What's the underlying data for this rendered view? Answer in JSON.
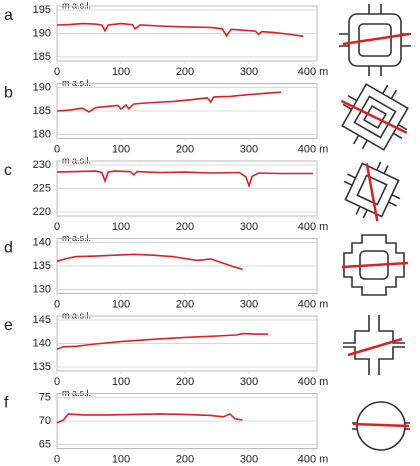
{
  "chart_data": [
    {
      "type": "line",
      "label": "a",
      "y_label": "m a.s.l.",
      "xlim": [
        0,
        400
      ],
      "ylim": [
        185,
        195
      ],
      "xticks": [
        0,
        100,
        200,
        300,
        {
          "value": 400,
          "label": "400 m"
        }
      ],
      "yticks": [
        185,
        190,
        195
      ],
      "x": [
        0,
        20,
        40,
        60,
        70,
        75,
        80,
        100,
        118,
        122,
        130,
        160,
        200,
        240,
        258,
        265,
        272,
        290,
        310,
        315,
        320,
        340,
        360,
        385
      ],
      "series": [
        {
          "color": "#e02020",
          "values": [
            191.8,
            191.9,
            192.1,
            192.0,
            191.8,
            190.6,
            191.8,
            192.1,
            191.9,
            191.0,
            191.8,
            191.6,
            191.4,
            191.3,
            191.0,
            189.5,
            190.9,
            190.7,
            190.5,
            189.8,
            190.4,
            190.2,
            189.9,
            189.4
          ]
        }
      ]
    },
    {
      "type": "line",
      "label": "b",
      "y_label": "m a.s.l.",
      "xlim": [
        0,
        400
      ],
      "ylim": [
        180,
        190
      ],
      "xticks": [
        0,
        100,
        200,
        300,
        {
          "value": 400,
          "label": "400 m"
        }
      ],
      "yticks": [
        180,
        185,
        190
      ],
      "x": [
        0,
        20,
        40,
        50,
        60,
        80,
        95,
        100,
        108,
        112,
        120,
        150,
        180,
        210,
        235,
        240,
        245,
        270,
        300,
        330,
        350
      ],
      "series": [
        {
          "color": "#e02020",
          "values": [
            185.0,
            185.2,
            185.6,
            184.8,
            185.7,
            186.0,
            186.2,
            185.4,
            186.3,
            185.5,
            186.5,
            186.8,
            187.0,
            187.4,
            187.8,
            186.9,
            188.0,
            188.1,
            188.5,
            188.8,
            189.0
          ]
        }
      ]
    },
    {
      "type": "line",
      "label": "c",
      "y_label": "m a.s.l.",
      "xlim": [
        0,
        400
      ],
      "ylim": [
        220,
        230
      ],
      "xticks": [
        0,
        100,
        200,
        300,
        {
          "value": 400,
          "label": "400 m"
        }
      ],
      "yticks": [
        220,
        225,
        230
      ],
      "x": [
        0,
        30,
        60,
        70,
        75,
        80,
        90,
        115,
        120,
        125,
        160,
        200,
        240,
        285,
        295,
        300,
        305,
        315,
        350,
        400
      ],
      "series": [
        {
          "color": "#e02020",
          "values": [
            228.5,
            228.6,
            228.7,
            228.4,
            226.6,
            228.5,
            228.7,
            228.6,
            227.9,
            228.6,
            228.4,
            228.5,
            228.3,
            228.4,
            227.5,
            225.6,
            227.6,
            228.3,
            228.2,
            228.2
          ]
        }
      ]
    },
    {
      "type": "line",
      "label": "d",
      "y_label": "m a.s.l.",
      "xlim": [
        0,
        400
      ],
      "ylim": [
        130,
        140
      ],
      "xticks": [
        0,
        100,
        200,
        300,
        {
          "value": 400,
          "label": "400 m"
        }
      ],
      "yticks": [
        130,
        135,
        140
      ],
      "x": [
        0,
        15,
        30,
        60,
        90,
        120,
        150,
        180,
        200,
        220,
        240,
        260,
        275,
        290
      ],
      "series": [
        {
          "color": "#e02020",
          "values": [
            136.0,
            136.6,
            137.0,
            137.1,
            137.3,
            137.5,
            137.3,
            137.0,
            136.6,
            136.2,
            136.5,
            135.6,
            134.9,
            134.3
          ]
        }
      ]
    },
    {
      "type": "line",
      "label": "e",
      "y_label": "m a.s.l.",
      "xlim": [
        0,
        400
      ],
      "ylim": [
        135,
        145
      ],
      "xticks": [
        0,
        100,
        200,
        300,
        {
          "value": 400,
          "label": "400 m"
        }
      ],
      "yticks": [
        135,
        140,
        145
      ],
      "x": [
        0,
        10,
        30,
        60,
        100,
        150,
        200,
        250,
        280,
        290,
        310,
        330
      ],
      "series": [
        {
          "color": "#e02020",
          "values": [
            138.8,
            139.3,
            139.4,
            139.9,
            140.4,
            140.9,
            141.3,
            141.6,
            141.8,
            142.1,
            142.0,
            142.0
          ]
        }
      ]
    },
    {
      "type": "line",
      "label": "f",
      "y_label": "m a.s.l.",
      "xlim": [
        0,
        400
      ],
      "ylim": [
        65,
        75
      ],
      "xticks": [
        0,
        100,
        200,
        300,
        {
          "value": 400,
          "label": "400 m"
        }
      ],
      "yticks": [
        65,
        70,
        75
      ],
      "x": [
        0,
        10,
        18,
        40,
        80,
        120,
        160,
        200,
        240,
        260,
        270,
        278,
        290
      ],
      "series": [
        {
          "color": "#e02020",
          "values": [
            69.6,
            70.2,
            71.5,
            71.3,
            71.3,
            71.4,
            71.5,
            71.4,
            71.2,
            70.9,
            71.5,
            70.5,
            70.2
          ]
        }
      ]
    }
  ]
}
